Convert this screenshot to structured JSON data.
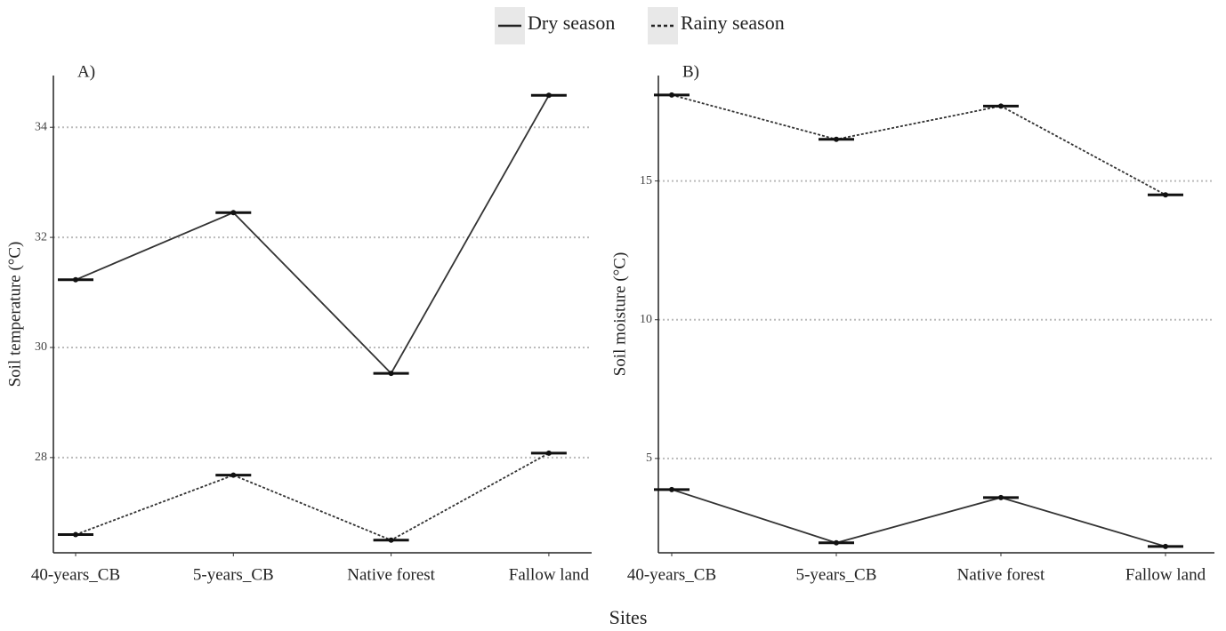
{
  "legend_position": "top",
  "xlabel": "Sites",
  "chart_data": [
    {
      "type": "line",
      "title": "A)",
      "ylabel": "Soil temperature (°C)",
      "categories": [
        "40-years_CB",
        "5-years_CB",
        "Native forest",
        "Fallow land"
      ],
      "series": [
        {
          "name": "Dry season",
          "color": "#333333",
          "line_style": "solid",
          "values": [
            31.23,
            32.45,
            29.53,
            34.58
          ]
        },
        {
          "name": "Rainy season",
          "color": "#333333",
          "line_style": "dotted",
          "values": [
            26.6,
            27.68,
            26.5,
            28.08
          ]
        }
      ],
      "ylim": [
        26.27,
        34.94
      ],
      "yticks": [
        28,
        30,
        32,
        34
      ],
      "grid": true
    },
    {
      "type": "line",
      "title": "B)",
      "ylabel": "Soil moisture (°C)",
      "categories": [
        "40-years_CB",
        "5-years_CB",
        "Native forest",
        "Fallow land"
      ],
      "series": [
        {
          "name": "Dry season",
          "color": "#333333",
          "line_style": "solid",
          "values": [
            3.88,
            1.96,
            3.59,
            1.83
          ]
        },
        {
          "name": "Rainy season",
          "color": "#333333",
          "line_style": "dotted",
          "values": [
            18.1,
            16.5,
            17.7,
            14.5
          ]
        }
      ],
      "ylim": [
        1.6,
        18.8
      ],
      "yticks": [
        5,
        10,
        15
      ],
      "grid": true
    }
  ]
}
